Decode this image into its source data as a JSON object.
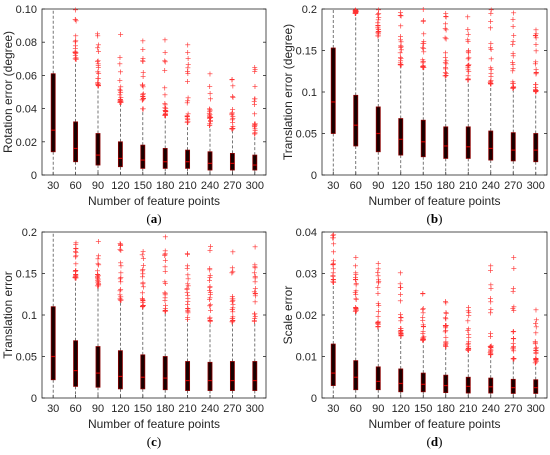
{
  "chart_data": [
    {
      "type": "box",
      "panel_label": "a",
      "xlabel": "Number of feature points",
      "ylabel": "Rotation error (degree)",
      "categories": [
        "30",
        "60",
        "90",
        "120",
        "150",
        "180",
        "210",
        "240",
        "270",
        "300"
      ],
      "ylim": [
        0,
        0.1
      ],
      "yticks": [
        "0",
        "0.02",
        "0.04",
        "0.06",
        "0.08",
        "0.10"
      ],
      "box_color": "#8b0000",
      "outlier_color": "#ff3333",
      "series": [
        {
          "q1": 0.014,
          "median": 0.027,
          "q3": 0.061,
          "whisker_high": 0.1,
          "outliers_from": 0.1,
          "outliers_to": 0.1
        },
        {
          "q1": 0.008,
          "median": 0.016,
          "q3": 0.032,
          "whisker_high": 0.068,
          "outliers_from": 0.07,
          "outliers_to": 0.1
        },
        {
          "q1": 0.006,
          "median": 0.012,
          "q3": 0.025,
          "whisker_high": 0.054,
          "outliers_from": 0.054,
          "outliers_to": 0.087
        },
        {
          "q1": 0.005,
          "median": 0.01,
          "q3": 0.02,
          "whisker_high": 0.044,
          "outliers_from": 0.044,
          "outliers_to": 0.089
        },
        {
          "q1": 0.004,
          "median": 0.009,
          "q3": 0.018,
          "whisker_high": 0.04,
          "outliers_from": 0.04,
          "outliers_to": 0.083
        },
        {
          "q1": 0.004,
          "median": 0.008,
          "q3": 0.016,
          "whisker_high": 0.036,
          "outliers_from": 0.036,
          "outliers_to": 0.083
        },
        {
          "q1": 0.004,
          "median": 0.008,
          "q3": 0.015,
          "whisker_high": 0.032,
          "outliers_from": 0.032,
          "outliers_to": 0.089
        },
        {
          "q1": 0.003,
          "median": 0.007,
          "q3": 0.014,
          "whisker_high": 0.03,
          "outliers_from": 0.03,
          "outliers_to": 0.065
        },
        {
          "q1": 0.003,
          "median": 0.007,
          "q3": 0.013,
          "whisker_high": 0.028,
          "outliers_from": 0.028,
          "outliers_to": 0.06
        },
        {
          "q1": 0.003,
          "median": 0.006,
          "q3": 0.012,
          "whisker_high": 0.025,
          "outliers_from": 0.025,
          "outliers_to": 0.067
        }
      ]
    },
    {
      "type": "box",
      "panel_label": "b",
      "xlabel": "Number of feature points",
      "ylabel": "Translation error (degree)",
      "categories": [
        "30",
        "60",
        "90",
        "120",
        "150",
        "180",
        "210",
        "240",
        "270",
        "300"
      ],
      "ylim": [
        0,
        0.2
      ],
      "yticks": [
        "0",
        "0.05",
        "0.1",
        "0.15",
        "0.2"
      ],
      "box_color": "#8b0000",
      "outlier_color": "#ff3333",
      "series": [
        {
          "q1": 0.05,
          "median": 0.088,
          "q3": 0.153,
          "whisker_high": 0.2,
          "outliers_from": 0.2,
          "outliers_to": 0.2
        },
        {
          "q1": 0.035,
          "median": 0.06,
          "q3": 0.096,
          "whisker_high": 0.195,
          "outliers_from": 0.195,
          "outliers_to": 0.2
        },
        {
          "q1": 0.028,
          "median": 0.05,
          "q3": 0.082,
          "whisker_high": 0.168,
          "outliers_from": 0.168,
          "outliers_to": 0.2
        },
        {
          "q1": 0.024,
          "median": 0.043,
          "q3": 0.068,
          "whisker_high": 0.133,
          "outliers_from": 0.133,
          "outliers_to": 0.2
        },
        {
          "q1": 0.022,
          "median": 0.04,
          "q3": 0.066,
          "whisker_high": 0.13,
          "outliers_from": 0.13,
          "outliers_to": 0.2
        },
        {
          "q1": 0.02,
          "median": 0.035,
          "q3": 0.058,
          "whisker_high": 0.12,
          "outliers_from": 0.12,
          "outliers_to": 0.2
        },
        {
          "q1": 0.02,
          "median": 0.034,
          "q3": 0.058,
          "whisker_high": 0.115,
          "outliers_from": 0.115,
          "outliers_to": 0.2
        },
        {
          "q1": 0.018,
          "median": 0.032,
          "q3": 0.053,
          "whisker_high": 0.11,
          "outliers_from": 0.11,
          "outliers_to": 0.2
        },
        {
          "q1": 0.017,
          "median": 0.03,
          "q3": 0.051,
          "whisker_high": 0.105,
          "outliers_from": 0.105,
          "outliers_to": 0.198
        },
        {
          "q1": 0.016,
          "median": 0.03,
          "q3": 0.05,
          "whisker_high": 0.1,
          "outliers_from": 0.1,
          "outliers_to": 0.195
        }
      ]
    },
    {
      "type": "box",
      "panel_label": "c",
      "xlabel": "Number of feature points",
      "ylabel": "Translation error",
      "categories": [
        "30",
        "60",
        "90",
        "120",
        "150",
        "180",
        "210",
        "240",
        "270",
        "300"
      ],
      "ylim": [
        0,
        0.2
      ],
      "yticks": [
        "0",
        "0.05",
        "0.1",
        "0.15",
        "0.2"
      ],
      "box_color": "#8b0000",
      "outlier_color": "#ff3333",
      "series": [
        {
          "q1": 0.022,
          "median": 0.05,
          "q3": 0.11,
          "whisker_high": 0.2,
          "outliers_from": 0.2,
          "outliers_to": 0.2
        },
        {
          "q1": 0.014,
          "median": 0.033,
          "q3": 0.069,
          "whisker_high": 0.145,
          "outliers_from": 0.145,
          "outliers_to": 0.193
        },
        {
          "q1": 0.013,
          "median": 0.03,
          "q3": 0.062,
          "whisker_high": 0.135,
          "outliers_from": 0.135,
          "outliers_to": 0.197
        },
        {
          "q1": 0.011,
          "median": 0.026,
          "q3": 0.057,
          "whisker_high": 0.118,
          "outliers_from": 0.118,
          "outliers_to": 0.197
        },
        {
          "q1": 0.011,
          "median": 0.025,
          "q3": 0.052,
          "whisker_high": 0.11,
          "outliers_from": 0.11,
          "outliers_to": 0.195
        },
        {
          "q1": 0.01,
          "median": 0.024,
          "q3": 0.05,
          "whisker_high": 0.105,
          "outliers_from": 0.105,
          "outliers_to": 0.195
        },
        {
          "q1": 0.009,
          "median": 0.021,
          "q3": 0.044,
          "whisker_high": 0.095,
          "outliers_from": 0.095,
          "outliers_to": 0.195
        },
        {
          "q1": 0.009,
          "median": 0.021,
          "q3": 0.043,
          "whisker_high": 0.093,
          "outliers_from": 0.093,
          "outliers_to": 0.195
        },
        {
          "q1": 0.009,
          "median": 0.021,
          "q3": 0.044,
          "whisker_high": 0.092,
          "outliers_from": 0.092,
          "outliers_to": 0.193
        },
        {
          "q1": 0.009,
          "median": 0.021,
          "q3": 0.044,
          "whisker_high": 0.092,
          "outliers_from": 0.092,
          "outliers_to": 0.19
        }
      ]
    },
    {
      "type": "box",
      "panel_label": "d",
      "xlabel": "Number of feature points",
      "ylabel": "Scale error",
      "categories": [
        "30",
        "60",
        "90",
        "120",
        "150",
        "180",
        "210",
        "240",
        "270",
        "300"
      ],
      "ylim": [
        0,
        0.04
      ],
      "yticks": [
        "0",
        "0.01",
        "0.02",
        "0.03",
        "0.04"
      ],
      "box_color": "#8b0000",
      "outlier_color": "#ff3333",
      "series": [
        {
          "q1": 0.003,
          "median": 0.006,
          "q3": 0.013,
          "whisker_high": 0.028,
          "outliers_from": 0.028,
          "outliers_to": 0.04
        },
        {
          "q1": 0.002,
          "median": 0.005,
          "q3": 0.009,
          "whisker_high": 0.021,
          "outliers_from": 0.021,
          "outliers_to": 0.034
        },
        {
          "q1": 0.002,
          "median": 0.004,
          "q3": 0.0075,
          "whisker_high": 0.017,
          "outliers_from": 0.017,
          "outliers_to": 0.035
        },
        {
          "q1": 0.0015,
          "median": 0.0035,
          "q3": 0.007,
          "whisker_high": 0.015,
          "outliers_from": 0.015,
          "outliers_to": 0.031
        },
        {
          "q1": 0.0015,
          "median": 0.0033,
          "q3": 0.006,
          "whisker_high": 0.014,
          "outliers_from": 0.014,
          "outliers_to": 0.026
        },
        {
          "q1": 0.0013,
          "median": 0.003,
          "q3": 0.0055,
          "whisker_high": 0.0125,
          "outliers_from": 0.0125,
          "outliers_to": 0.024
        },
        {
          "q1": 0.0012,
          "median": 0.0028,
          "q3": 0.005,
          "whisker_high": 0.0115,
          "outliers_from": 0.0115,
          "outliers_to": 0.023
        },
        {
          "q1": 0.0012,
          "median": 0.0027,
          "q3": 0.0048,
          "whisker_high": 0.0105,
          "outliers_from": 0.0105,
          "outliers_to": 0.032
        },
        {
          "q1": 0.0011,
          "median": 0.0025,
          "q3": 0.0045,
          "whisker_high": 0.0095,
          "outliers_from": 0.0095,
          "outliers_to": 0.034
        },
        {
          "q1": 0.0011,
          "median": 0.0025,
          "q3": 0.0044,
          "whisker_high": 0.0085,
          "outliers_from": 0.0085,
          "outliers_to": 0.027
        }
      ]
    }
  ]
}
